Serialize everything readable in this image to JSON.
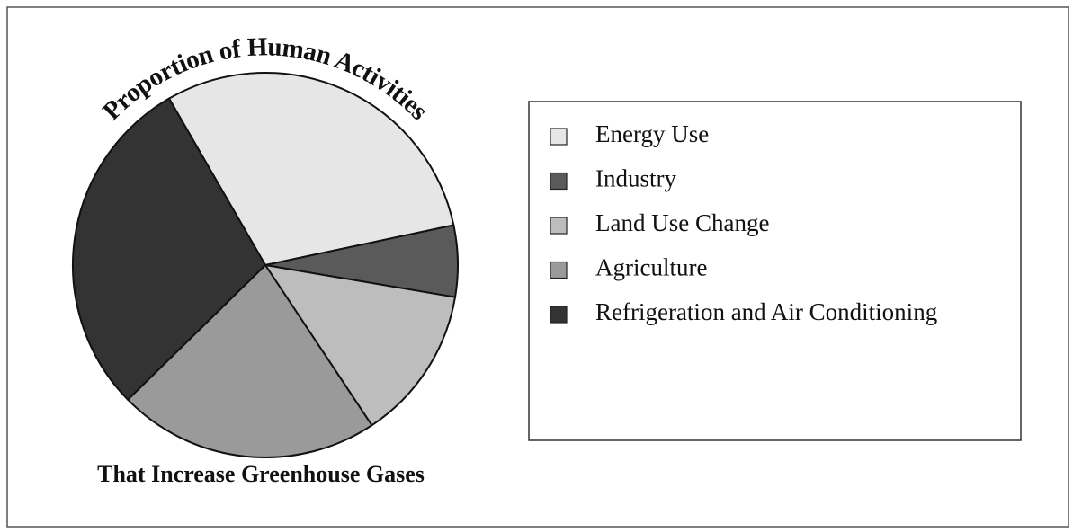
{
  "chart_data": {
    "type": "pie",
    "title": "Proportion of Human Activities",
    "subtitle": "That Increase Greenhouse Gases",
    "categories": [
      "Energy Use",
      "Industry",
      "Land Use Change",
      "Agriculture",
      "Refrigeration and Air Conditioning"
    ],
    "values": [
      30,
      6,
      13,
      22,
      29
    ],
    "colors": [
      "#e6e6e6",
      "#5a5a5a",
      "#bdbdbd",
      "#9a9a9a",
      "#333333"
    ],
    "legend": "right"
  }
}
